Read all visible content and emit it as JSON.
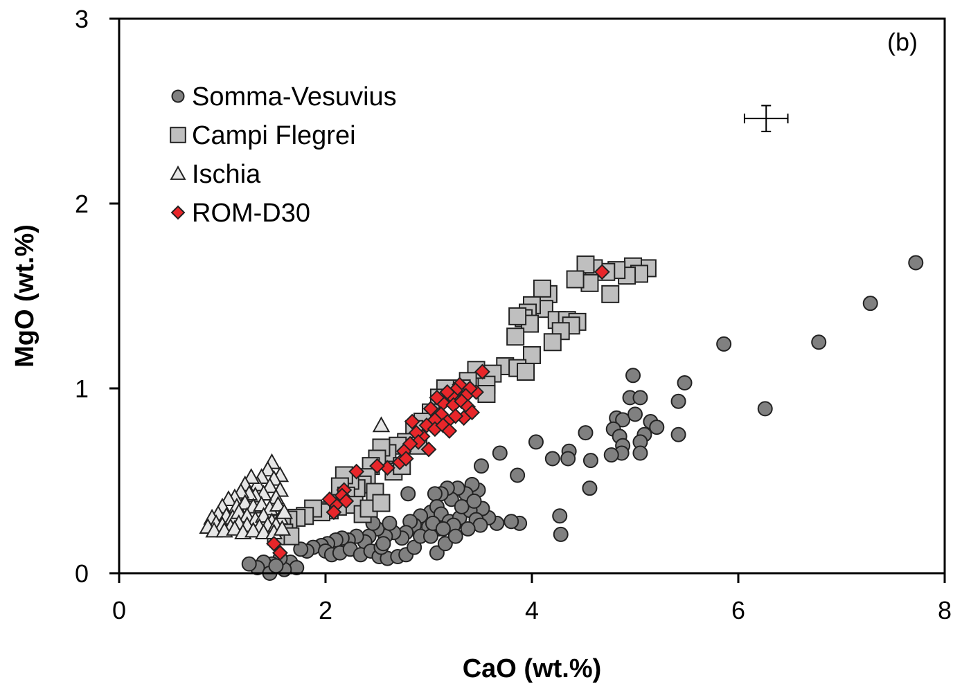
{
  "chart_data": {
    "type": "scatter",
    "panel_label": "(b)",
    "xlabel": "CaO (wt.%)",
    "ylabel": "MgO (wt.%)",
    "xlim": [
      0,
      8
    ],
    "ylim": [
      0,
      3
    ],
    "x_ticks": [
      "0",
      "2",
      "4",
      "6",
      "8"
    ],
    "y_ticks": [
      "0",
      "1",
      "2",
      "3"
    ],
    "grid": false,
    "legend_position": "upper-left",
    "error_bar": {
      "x": 6.27,
      "y": 2.46,
      "x_err": 0.21,
      "y_err": 0.07
    },
    "series": [
      {
        "name": "Somma-Vesuvius",
        "marker": "circle",
        "fill": "#808080",
        "points": [
          [
            7.72,
            1.68
          ],
          [
            7.28,
            1.46
          ],
          [
            6.78,
            1.25
          ],
          [
            5.86,
            1.24
          ],
          [
            6.26,
            0.89
          ],
          [
            5.48,
            1.03
          ],
          [
            4.98,
            1.07
          ],
          [
            5.42,
            0.93
          ],
          [
            4.95,
            0.95
          ],
          [
            5.05,
            0.95
          ],
          [
            5.15,
            0.82
          ],
          [
            5.21,
            0.79
          ],
          [
            5.42,
            0.75
          ],
          [
            5.09,
            0.75
          ],
          [
            5.05,
            0.71
          ],
          [
            4.82,
            0.84
          ],
          [
            4.88,
            0.83
          ],
          [
            5.0,
            0.86
          ],
          [
            4.79,
            0.78
          ],
          [
            4.85,
            0.74
          ],
          [
            4.88,
            0.69
          ],
          [
            4.87,
            0.65
          ],
          [
            4.77,
            0.64
          ],
          [
            5.05,
            0.65
          ],
          [
            4.52,
            0.76
          ],
          [
            4.36,
            0.66
          ],
          [
            4.35,
            0.62
          ],
          [
            4.2,
            0.62
          ],
          [
            4.57,
            0.61
          ],
          [
            4.56,
            0.46
          ],
          [
            4.04,
            0.71
          ],
          [
            3.69,
            0.65
          ],
          [
            3.51,
            0.58
          ],
          [
            3.86,
            0.53
          ],
          [
            4.27,
            0.31
          ],
          [
            4.28,
            0.21
          ],
          [
            3.88,
            0.27
          ],
          [
            3.8,
            0.28
          ],
          [
            3.66,
            0.27
          ],
          [
            3.58,
            0.3
          ],
          [
            3.52,
            0.35
          ],
          [
            3.48,
            0.45
          ],
          [
            3.42,
            0.48
          ],
          [
            3.36,
            0.43
          ],
          [
            3.28,
            0.46
          ],
          [
            3.22,
            0.4
          ],
          [
            3.18,
            0.46
          ],
          [
            3.12,
            0.43
          ],
          [
            3.06,
            0.43
          ],
          [
            3.02,
            0.33
          ],
          [
            3.08,
            0.36
          ],
          [
            3.12,
            0.32
          ],
          [
            3.2,
            0.28
          ],
          [
            3.3,
            0.3
          ],
          [
            3.4,
            0.34
          ],
          [
            3.46,
            0.29
          ],
          [
            3.5,
            0.26
          ],
          [
            3.38,
            0.24
          ],
          [
            3.24,
            0.26
          ],
          [
            3.1,
            0.24
          ],
          [
            3.0,
            0.25
          ],
          [
            2.92,
            0.31
          ],
          [
            2.86,
            0.26
          ],
          [
            2.82,
            0.28
          ],
          [
            2.78,
            0.22
          ],
          [
            2.74,
            0.19
          ],
          [
            2.66,
            0.22
          ],
          [
            2.58,
            0.2
          ],
          [
            2.5,
            0.24
          ],
          [
            2.42,
            0.2
          ],
          [
            2.38,
            0.17
          ],
          [
            2.3,
            0.2
          ],
          [
            2.22,
            0.18
          ],
          [
            2.16,
            0.19
          ],
          [
            2.1,
            0.18
          ],
          [
            2.02,
            0.16
          ],
          [
            1.96,
            0.15
          ],
          [
            1.88,
            0.14
          ],
          [
            1.82,
            0.12
          ],
          [
            1.76,
            0.13
          ],
          [
            2.0,
            0.12
          ],
          [
            2.06,
            0.1
          ],
          [
            2.14,
            0.11
          ],
          [
            2.24,
            0.13
          ],
          [
            2.34,
            0.1
          ],
          [
            2.44,
            0.12
          ],
          [
            2.52,
            0.09
          ],
          [
            2.6,
            0.08
          ],
          [
            2.7,
            0.09
          ],
          [
            2.78,
            0.1
          ],
          [
            2.86,
            0.14
          ],
          [
            2.92,
            0.2
          ],
          [
            3.08,
            0.11
          ],
          [
            3.16,
            0.16
          ],
          [
            3.26,
            0.2
          ],
          [
            2.8,
            0.43
          ],
          [
            2.54,
            0.14
          ],
          [
            2.62,
            0.27
          ],
          [
            2.46,
            0.27
          ],
          [
            2.56,
            0.16
          ],
          [
            1.66,
            0.06
          ],
          [
            1.72,
            0.03
          ],
          [
            1.6,
            0.02
          ],
          [
            1.56,
            0.08
          ],
          [
            1.48,
            0.05
          ],
          [
            1.4,
            0.06
          ],
          [
            1.34,
            0.03
          ],
          [
            1.26,
            0.05
          ],
          [
            1.46,
            0.0
          ],
          [
            1.52,
            0.04
          ],
          [
            3.02,
            0.2
          ],
          [
            3.04,
            0.27
          ],
          [
            3.14,
            0.24
          ],
          [
            3.32,
            0.36
          ],
          [
            3.44,
            0.39
          ]
        ]
      },
      {
        "name": "Campi Flegrei",
        "marker": "square",
        "fill": "#bfbfbf",
        "points": [
          [
            5.12,
            1.65
          ],
          [
            4.98,
            1.66
          ],
          [
            5.04,
            1.62
          ],
          [
            4.92,
            1.61
          ],
          [
            4.82,
            1.64
          ],
          [
            4.72,
            1.63
          ],
          [
            4.6,
            1.65
          ],
          [
            4.52,
            1.67
          ],
          [
            4.56,
            1.57
          ],
          [
            4.42,
            1.59
          ],
          [
            4.76,
            1.51
          ],
          [
            4.16,
            1.51
          ],
          [
            4.1,
            1.54
          ],
          [
            4.12,
            1.43
          ],
          [
            4.0,
            1.45
          ],
          [
            3.96,
            1.41
          ],
          [
            3.92,
            1.38
          ],
          [
            3.98,
            1.35
          ],
          [
            4.24,
            1.37
          ],
          [
            4.34,
            1.37
          ],
          [
            4.44,
            1.36
          ],
          [
            4.38,
            1.34
          ],
          [
            4.28,
            1.31
          ],
          [
            4.2,
            1.25
          ],
          [
            3.86,
            1.39
          ],
          [
            3.84,
            1.28
          ],
          [
            4.0,
            1.18
          ],
          [
            3.74,
            1.12
          ],
          [
            3.86,
            1.11
          ],
          [
            3.94,
            1.09
          ],
          [
            3.62,
            1.08
          ],
          [
            3.56,
            1.02
          ],
          [
            3.56,
            0.97
          ],
          [
            3.46,
            1.1
          ],
          [
            3.38,
            1.04
          ],
          [
            3.32,
            1.0
          ],
          [
            3.24,
            0.97
          ],
          [
            3.16,
            1.0
          ],
          [
            3.1,
            0.95
          ],
          [
            3.02,
            0.87
          ],
          [
            2.94,
            0.82
          ],
          [
            2.86,
            0.78
          ],
          [
            2.78,
            0.71
          ],
          [
            2.7,
            0.69
          ],
          [
            2.6,
            0.65
          ],
          [
            2.54,
            0.68
          ],
          [
            2.5,
            0.62
          ],
          [
            2.44,
            0.58
          ],
          [
            2.4,
            0.52
          ],
          [
            2.36,
            0.48
          ],
          [
            2.3,
            0.46
          ],
          [
            2.24,
            0.5
          ],
          [
            2.18,
            0.53
          ],
          [
            2.14,
            0.47
          ],
          [
            2.2,
            0.42
          ],
          [
            2.28,
            0.37
          ],
          [
            2.36,
            0.32
          ],
          [
            2.42,
            0.35
          ],
          [
            2.48,
            0.44
          ],
          [
            2.54,
            0.38
          ],
          [
            2.12,
            0.36
          ],
          [
            2.04,
            0.34
          ],
          [
            1.96,
            0.33
          ],
          [
            1.88,
            0.35
          ],
          [
            1.8,
            0.31
          ],
          [
            1.72,
            0.3
          ],
          [
            1.64,
            0.29
          ],
          [
            1.58,
            0.27
          ],
          [
            1.6,
            0.22
          ],
          [
            1.66,
            0.2
          ],
          [
            1.52,
            0.2
          ],
          [
            1.5,
            0.25
          ],
          [
            2.66,
            0.55
          ],
          [
            2.74,
            0.58
          ],
          [
            2.9,
            0.69
          ]
        ]
      },
      {
        "name": "Ischia",
        "marker": "triangle",
        "fill": "#e6e6e6",
        "points": [
          [
            2.54,
            0.8
          ],
          [
            1.48,
            0.6
          ],
          [
            1.56,
            0.53
          ],
          [
            1.44,
            0.56
          ],
          [
            1.5,
            0.51
          ],
          [
            1.38,
            0.52
          ],
          [
            1.34,
            0.48
          ],
          [
            1.28,
            0.52
          ],
          [
            1.22,
            0.48
          ],
          [
            1.46,
            0.47
          ],
          [
            1.56,
            0.45
          ],
          [
            1.52,
            0.41
          ],
          [
            1.4,
            0.43
          ],
          [
            1.32,
            0.42
          ],
          [
            1.26,
            0.43
          ],
          [
            1.18,
            0.44
          ],
          [
            1.12,
            0.41
          ],
          [
            1.06,
            0.4
          ],
          [
            1.14,
            0.36
          ],
          [
            1.22,
            0.38
          ],
          [
            1.3,
            0.36
          ],
          [
            1.38,
            0.37
          ],
          [
            1.46,
            0.35
          ],
          [
            1.54,
            0.37
          ],
          [
            1.0,
            0.36
          ],
          [
            0.96,
            0.32
          ],
          [
            1.04,
            0.31
          ],
          [
            1.1,
            0.3
          ],
          [
            1.16,
            0.33
          ],
          [
            1.24,
            0.31
          ],
          [
            1.32,
            0.29
          ],
          [
            1.4,
            0.31
          ],
          [
            1.48,
            0.28
          ],
          [
            1.56,
            0.3
          ],
          [
            0.9,
            0.3
          ],
          [
            0.94,
            0.27
          ],
          [
            1.0,
            0.26
          ],
          [
            1.08,
            0.25
          ],
          [
            1.16,
            0.27
          ],
          [
            1.24,
            0.26
          ],
          [
            1.36,
            0.25
          ],
          [
            1.44,
            0.26
          ],
          [
            1.52,
            0.26
          ],
          [
            0.86,
            0.25
          ],
          [
            0.92,
            0.23
          ],
          [
            1.02,
            0.23
          ],
          [
            1.12,
            0.24
          ],
          [
            1.2,
            0.22
          ],
          [
            1.3,
            0.23
          ],
          [
            1.4,
            0.22
          ],
          [
            1.5,
            0.22
          ],
          [
            1.58,
            0.24
          ],
          [
            1.6,
            0.33
          ]
        ]
      },
      {
        "name": "ROM-D30",
        "marker": "diamond",
        "fill": "#e8262a",
        "points": [
          [
            4.68,
            1.63
          ],
          [
            3.52,
            1.09
          ],
          [
            3.46,
            0.98
          ],
          [
            3.4,
            1.0
          ],
          [
            3.36,
            0.96
          ],
          [
            3.3,
            1.02
          ],
          [
            3.26,
            0.99
          ],
          [
            3.22,
            0.96
          ],
          [
            3.18,
            0.98
          ],
          [
            3.14,
            0.92
          ],
          [
            3.08,
            0.95
          ],
          [
            3.24,
            0.91
          ],
          [
            3.32,
            0.93
          ],
          [
            3.38,
            0.9
          ],
          [
            3.42,
            0.87
          ],
          [
            3.34,
            0.84
          ],
          [
            3.26,
            0.85
          ],
          [
            3.18,
            0.82
          ],
          [
            3.12,
            0.86
          ],
          [
            3.06,
            0.83
          ],
          [
            3.02,
            0.89
          ],
          [
            2.98,
            0.8
          ],
          [
            3.06,
            0.78
          ],
          [
            3.14,
            0.8
          ],
          [
            3.2,
            0.77
          ],
          [
            2.94,
            0.74
          ],
          [
            2.88,
            0.76
          ],
          [
            2.84,
            0.82
          ],
          [
            2.9,
            0.71
          ],
          [
            3.0,
            0.67
          ],
          [
            2.82,
            0.7
          ],
          [
            2.76,
            0.66
          ],
          [
            2.72,
            0.6
          ],
          [
            2.78,
            0.62
          ],
          [
            2.6,
            0.57
          ],
          [
            2.5,
            0.58
          ],
          [
            2.3,
            0.55
          ],
          [
            2.18,
            0.45
          ],
          [
            2.16,
            0.42
          ],
          [
            2.2,
            0.39
          ],
          [
            2.1,
            0.37
          ],
          [
            2.04,
            0.4
          ],
          [
            2.08,
            0.33
          ],
          [
            1.5,
            0.16
          ],
          [
            1.56,
            0.11
          ]
        ]
      }
    ]
  }
}
